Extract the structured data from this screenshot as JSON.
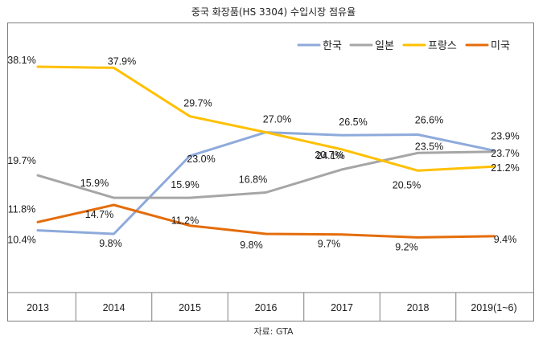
{
  "chart_data": {
    "type": "line",
    "title": "중국 화장품(HS 3304) 수입시장 점유율",
    "categories": [
      "2013",
      "2014",
      "2015",
      "2016",
      "2017",
      "2018",
      "2019(1~6)"
    ],
    "unit": "%",
    "ylim": [
      0,
      42
    ],
    "grid": false,
    "legend_position": "top-right",
    "series": [
      {
        "name": "한국",
        "color": "#8eaadb",
        "values": [
          10.4,
          9.8,
          23.0,
          27.0,
          26.5,
          26.6,
          23.9
        ],
        "labels": [
          "10.4%",
          "9.8%",
          "23.0%",
          "27.0%",
          "26.5%",
          "26.6%",
          "23.9%"
        ]
      },
      {
        "name": "일본",
        "color": "#a6a6a6",
        "values": [
          19.7,
          15.9,
          15.9,
          16.8,
          20.7,
          23.5,
          23.7
        ],
        "labels": [
          "19.7%",
          "15.9%",
          "15.9%",
          "16.8%",
          "20.7%",
          "23.5%",
          "23.7%"
        ]
      },
      {
        "name": "프랑스",
        "color": "#ffc000",
        "values": [
          38.1,
          37.9,
          29.7,
          27.0,
          24.1,
          20.5,
          21.2
        ],
        "labels": [
          "38.1%",
          "37.9%",
          "29.7%",
          "",
          "24.1%",
          "20.5%",
          "21.2%"
        ]
      },
      {
        "name": "미국",
        "color": "#e46c0a",
        "values": [
          11.8,
          14.7,
          11.2,
          9.8,
          9.7,
          9.2,
          9.4
        ],
        "labels": [
          "11.8%",
          "14.7%",
          "11.2%",
          "9.8%",
          "9.7%",
          "9.2%",
          "9.4%"
        ]
      }
    ],
    "source": "자료: GTA"
  }
}
